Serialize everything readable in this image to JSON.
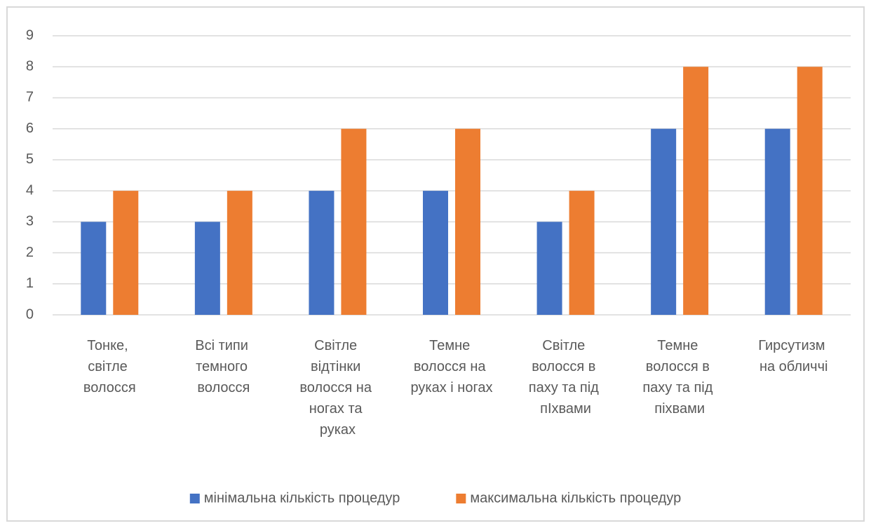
{
  "chart_data": {
    "type": "bar",
    "categories": [
      "Тонке, світле волосся",
      "Всі типи темного волосся",
      "Світле відтінки волосся на ногах та руках",
      "Темне волосся на руках і ногах",
      "Світле волосся в паху та під пІхвами",
      "Темне волосся в паху та під піхвами",
      "Гирсутизм на обличчі"
    ],
    "series": [
      {
        "name": "мінімальна кількість процедур",
        "color": "#4472c4",
        "values": [
          3,
          3,
          4,
          4,
          3,
          6,
          6
        ]
      },
      {
        "name": "максимальна кількість процедур",
        "color": "#ed7d31",
        "values": [
          4,
          4,
          6,
          6,
          4,
          8,
          8
        ]
      }
    ],
    "ylim": [
      0,
      9
    ],
    "yticks": [
      0,
      1,
      2,
      3,
      4,
      5,
      6,
      7,
      8,
      9
    ],
    "grid": true,
    "legend": "bottom"
  }
}
